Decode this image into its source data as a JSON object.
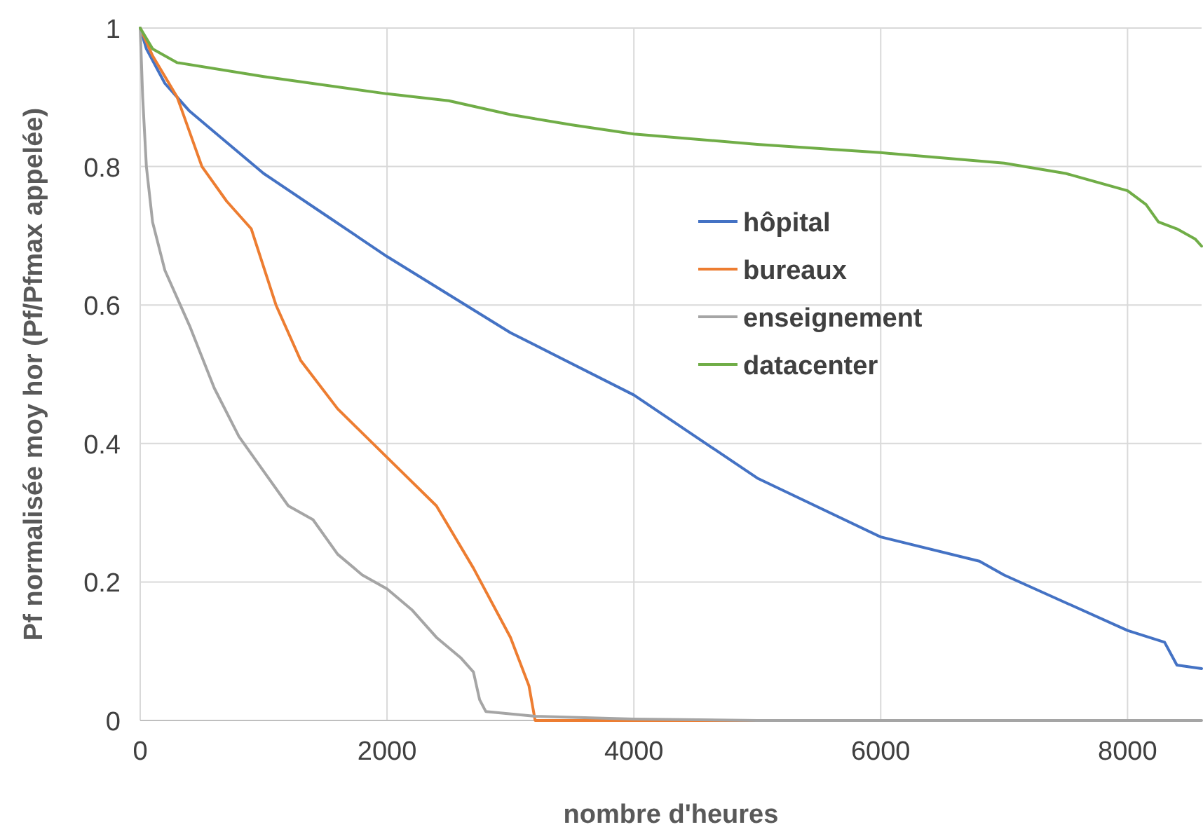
{
  "chart_data": {
    "type": "line",
    "xlabel": "nombre d'heures",
    "ylabel": "Pf normalisée moy hor (Pf/Pfmax appelée)",
    "xlim": [
      0,
      8600
    ],
    "xticks": [
      0,
      2000,
      4000,
      6000,
      8000
    ],
    "ylim": [
      0,
      1
    ],
    "yticks": [
      0,
      0.2,
      0.4,
      0.6,
      0.8,
      1
    ],
    "grid": true,
    "legend": "right",
    "marker": "none",
    "line_style": "solid",
    "series": [
      {
        "name": "hôpital",
        "color": "#4472c4",
        "x": [
          0,
          50,
          200,
          400,
          600,
          1000,
          1500,
          2000,
          3000,
          4000,
          5000,
          6000,
          6800,
          7000,
          8000,
          8300,
          8400,
          8600
        ],
        "values": [
          1,
          0.97,
          0.92,
          0.88,
          0.85,
          0.79,
          0.73,
          0.67,
          0.56,
          0.47,
          0.35,
          0.265,
          0.23,
          0.21,
          0.13,
          0.113,
          0.08,
          0.075
        ]
      },
      {
        "name": "bureaux",
        "color": "#ed7d31",
        "x": [
          0,
          100,
          300,
          500,
          700,
          900,
          1100,
          1300,
          1600,
          2000,
          2400,
          2700,
          3000,
          3150,
          3200,
          5000
        ],
        "values": [
          1,
          0.96,
          0.9,
          0.8,
          0.75,
          0.71,
          0.6,
          0.52,
          0.45,
          0.38,
          0.31,
          0.22,
          0.12,
          0.05,
          0,
          0
        ]
      },
      {
        "name": "enseignement",
        "color": "#a5a5a5",
        "x": [
          0,
          20,
          50,
          100,
          200,
          400,
          600,
          800,
          1000,
          1200,
          1400,
          1600,
          1800,
          2000,
          2200,
          2400,
          2600,
          2700,
          2750,
          2800,
          3200,
          4000,
          5000,
          8600
        ],
        "values": [
          1,
          0.9,
          0.8,
          0.72,
          0.65,
          0.57,
          0.48,
          0.41,
          0.36,
          0.31,
          0.29,
          0.24,
          0.21,
          0.19,
          0.16,
          0.12,
          0.09,
          0.07,
          0.03,
          0.013,
          0.006,
          0.002,
          0,
          0
        ]
      },
      {
        "name": "datacenter",
        "color": "#70ad47",
        "x": [
          0,
          100,
          300,
          1000,
          2000,
          2500,
          3000,
          3500,
          4000,
          5000,
          6000,
          7000,
          7500,
          8000,
          8150,
          8250,
          8400,
          8550,
          8600
        ],
        "values": [
          1,
          0.97,
          0.95,
          0.93,
          0.905,
          0.895,
          0.875,
          0.86,
          0.847,
          0.832,
          0.82,
          0.805,
          0.79,
          0.765,
          0.745,
          0.72,
          0.71,
          0.695,
          0.685
        ]
      }
    ]
  }
}
